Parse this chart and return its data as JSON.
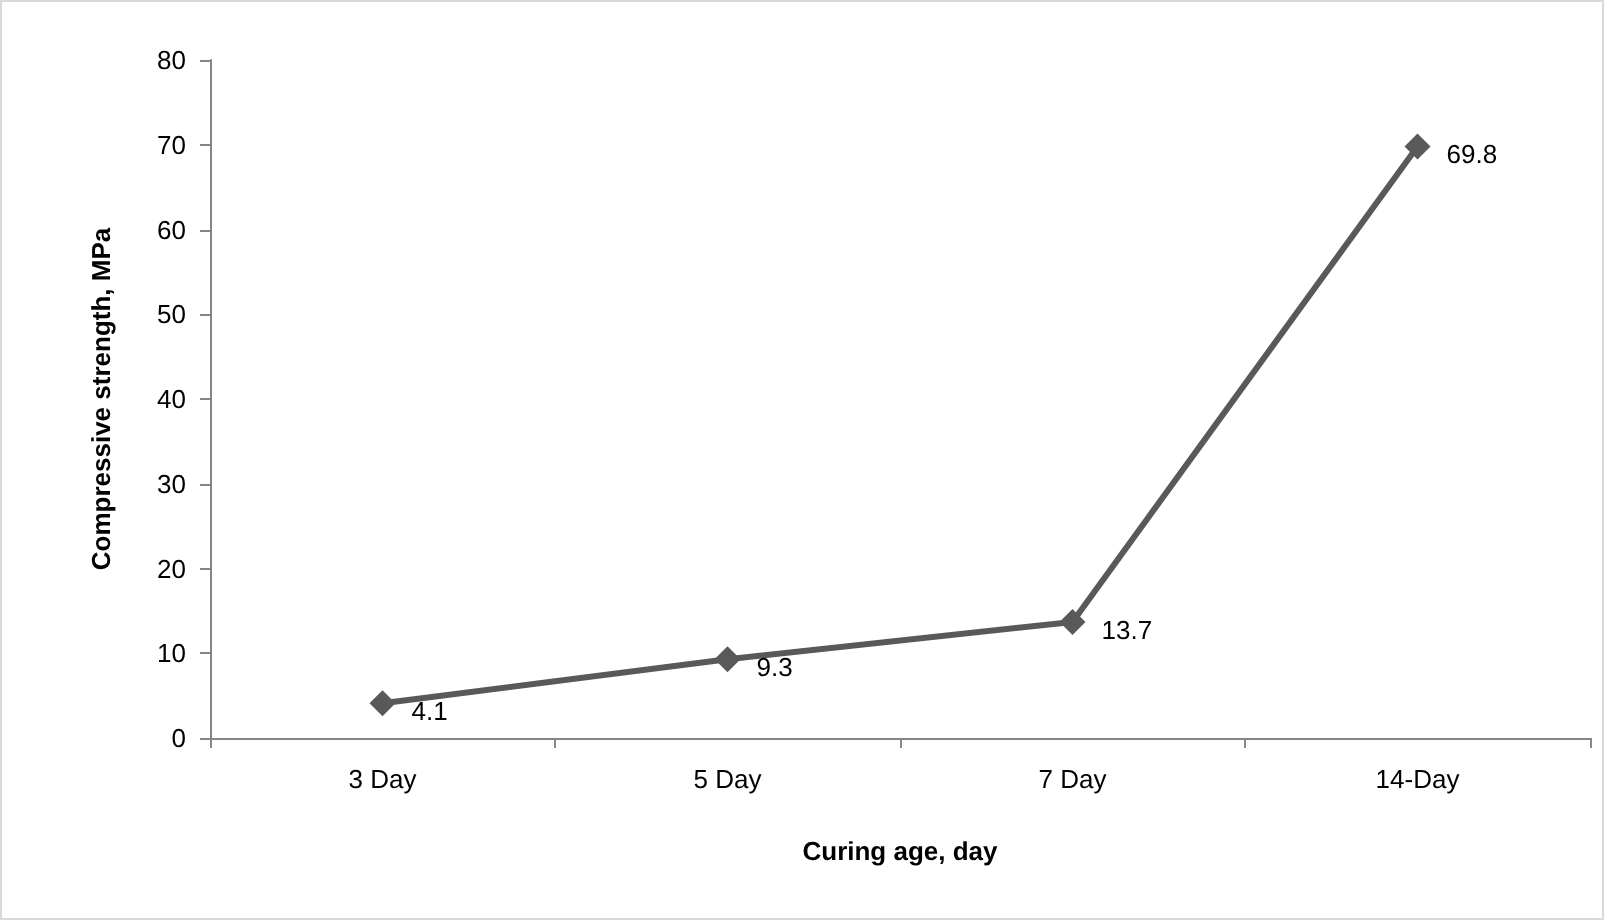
{
  "chart_data": {
    "type": "line",
    "xlabel": "Curing age, day",
    "ylabel": "Compressive strength, MPa",
    "categories": [
      "3 Day",
      "5 Day",
      "7 Day",
      "14-Day"
    ],
    "series": [
      {
        "color": "#595959",
        "values": [
          4.1,
          9.3,
          13.7,
          69.8
        ]
      }
    ],
    "ylim": [
      0,
      80
    ],
    "yticks": [
      0,
      10,
      20,
      30,
      40,
      50,
      60,
      70,
      80
    ],
    "grid": false,
    "marker": "diamond",
    "line_style": "solid",
    "data_labels": true
  }
}
